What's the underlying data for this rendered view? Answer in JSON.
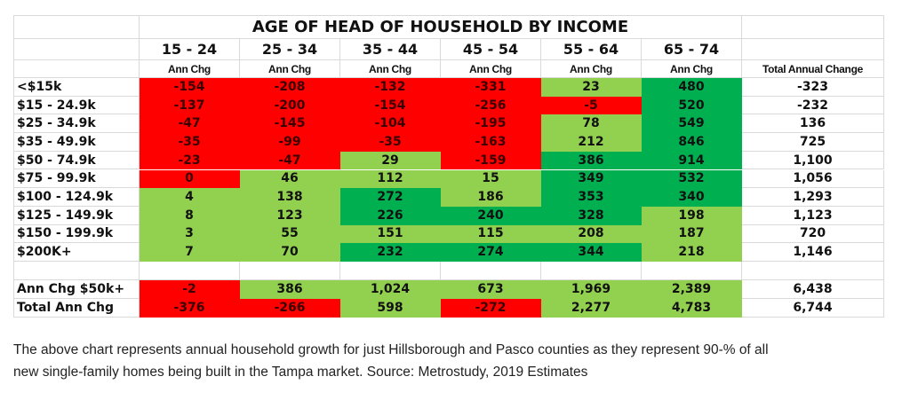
{
  "chart_data": {
    "type": "table",
    "title": "AGE OF HEAD OF HOUSEHOLD BY INCOME",
    "columns": [
      "15 - 24",
      "25 - 34",
      "35 - 44",
      "45 - 54",
      "55 - 64",
      "65 - 74"
    ],
    "subheader": "Ann Chg",
    "total_header": "Total Annual Change",
    "rows": [
      {
        "label": "<$15k",
        "values": [
          "-154",
          "-208",
          "-132",
          "-331",
          "23",
          "480"
        ],
        "colors": [
          "red",
          "red",
          "red",
          "red",
          "lg",
          "dg"
        ],
        "total": "-323"
      },
      {
        "label": "$15 - 24.9k",
        "values": [
          "-137",
          "-200",
          "-154",
          "-256",
          "-5",
          "520"
        ],
        "colors": [
          "red",
          "red",
          "red",
          "red",
          "red",
          "dg"
        ],
        "total": "-232"
      },
      {
        "label": "$25 - 34.9k",
        "values": [
          "-47",
          "-145",
          "-104",
          "-195",
          "78",
          "549"
        ],
        "colors": [
          "red",
          "red",
          "red",
          "red",
          "lg",
          "dg"
        ],
        "total": "136"
      },
      {
        "label": "$35 - 49.9k",
        "values": [
          "-35",
          "-99",
          "-35",
          "-163",
          "212",
          "846"
        ],
        "colors": [
          "red",
          "red",
          "red",
          "red",
          "lg",
          "dg"
        ],
        "total": "725"
      },
      {
        "label": "$50 - 74.9k",
        "values": [
          "-23",
          "-47",
          "29",
          "-159",
          "386",
          "914"
        ],
        "colors": [
          "red",
          "red",
          "lg",
          "red",
          "dg",
          "dg"
        ],
        "total": "1,100"
      },
      {
        "label": "$75 - 99.9k",
        "values": [
          "0",
          "46",
          "112",
          "15",
          "349",
          "532"
        ],
        "colors": [
          "red",
          "lg",
          "lg",
          "lg",
          "dg",
          "dg"
        ],
        "total": "1,056"
      },
      {
        "label": "$100 - 124.9k",
        "values": [
          "4",
          "138",
          "272",
          "186",
          "353",
          "340"
        ],
        "colors": [
          "lg",
          "lg",
          "dg",
          "lg",
          "dg",
          "dg"
        ],
        "total": "1,293"
      },
      {
        "label": "$125 - 149.9k",
        "values": [
          "8",
          "123",
          "226",
          "240",
          "328",
          "198"
        ],
        "colors": [
          "lg",
          "lg",
          "dg",
          "dg",
          "dg",
          "lg"
        ],
        "total": "1,123"
      },
      {
        "label": "$150 - 199.9k",
        "values": [
          "3",
          "55",
          "151",
          "115",
          "208",
          "187"
        ],
        "colors": [
          "lg",
          "lg",
          "lg",
          "lg",
          "lg",
          "lg"
        ],
        "total": "720"
      },
      {
        "label": "$200K+",
        "values": [
          "7",
          "70",
          "232",
          "274",
          "344",
          "218"
        ],
        "colors": [
          "lg",
          "lg",
          "dg",
          "dg",
          "dg",
          "lg"
        ],
        "total": "1,146"
      }
    ],
    "summary_rows": [
      {
        "label": "Ann Chg $50k+",
        "values": [
          "-2",
          "386",
          "1,024",
          "673",
          "1,969",
          "2,389"
        ],
        "colors": [
          "red",
          "lg",
          "lg",
          "lg",
          "lg",
          "lg"
        ],
        "total": "6,438"
      },
      {
        "label": "Total Ann Chg",
        "values": [
          "-376",
          "-266",
          "598",
          "-272",
          "2,277",
          "4,783"
        ],
        "colors": [
          "red",
          "red",
          "lg",
          "red",
          "lg",
          "lg"
        ],
        "total": "6,744"
      }
    ],
    "color_key": {
      "red": "#ff0000",
      "lg": "#92d050",
      "dg": "#00b050"
    }
  },
  "note": {
    "line1": "The above chart represents  annual household growth for just Hillsborough and Pasco counties as they represent  90-% of all",
    "line2": "new single-family homes being built in the Tampa market. Source: Metrostudy, 2019 Estimates"
  }
}
